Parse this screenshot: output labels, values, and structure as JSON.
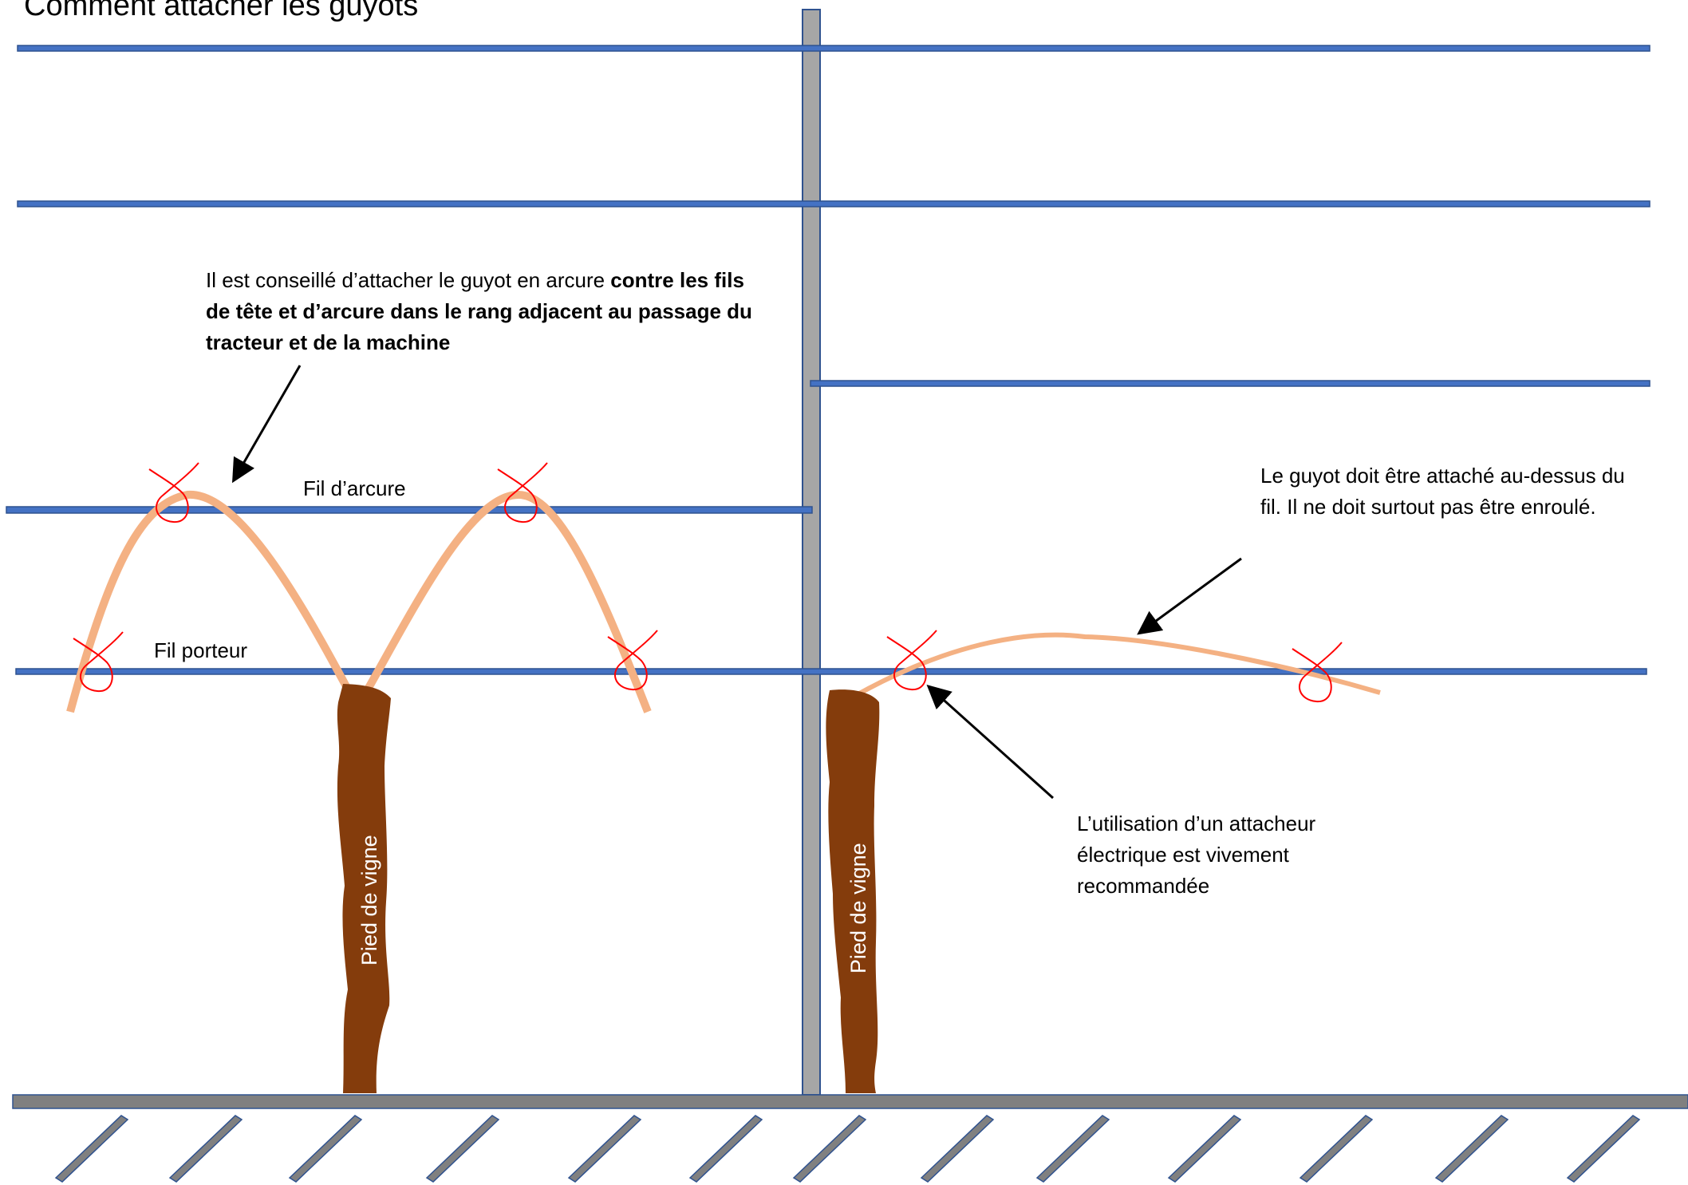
{
  "title": "Comment attacher les guyots",
  "wire_labels": {
    "arcure": "Fil d’arcure",
    "porteur": "Fil porteur"
  },
  "trunk_label": "Pied de vigne",
  "notes": {
    "left_plain": "Il est conseillé d’attacher le guyot en arcure ",
    "left_bold": "contre les fils de tête et d’arcure dans le rang adjacent au passage du tracteur et de la machine",
    "right_top": "Le guyot doit être attaché au-dessus du fil. Il ne doit surtout pas être enroulé.",
    "right_bottom": "L’utilisation d’un attacheur électrique est vivement recommandée"
  },
  "colors": {
    "wire": "#4472c4",
    "wire_edge": "#2f528f",
    "post": "#a6a6a6",
    "ground": "#808080",
    "trunk": "#843c0c",
    "cane": "#f4b183",
    "tie": "#ff0000",
    "arrow": "#000000"
  }
}
